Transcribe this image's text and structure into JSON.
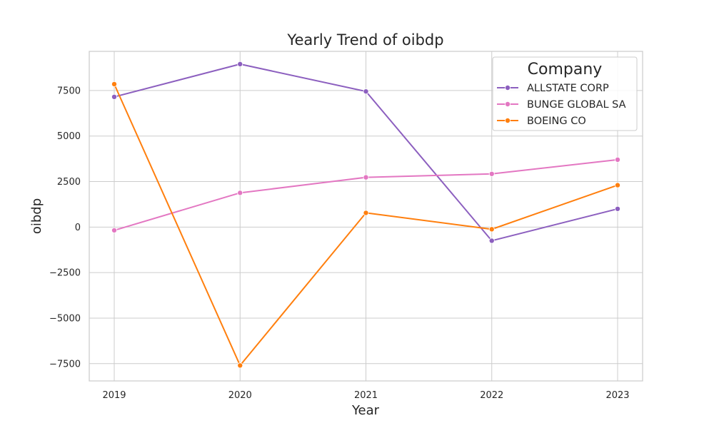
{
  "chart_data": {
    "type": "line",
    "title": "Yearly Trend of oibdp",
    "xlabel": "Year",
    "ylabel": "oibdp",
    "x": [
      "2019",
      "2020",
      "2021",
      "2022",
      "2023"
    ],
    "yticks": [
      -7500,
      -5000,
      -2500,
      0,
      2500,
      5000,
      7500
    ],
    "ytick_labels": [
      "−7500",
      "−5000",
      "−2500",
      "0",
      "2500",
      "5000",
      "7500"
    ],
    "ylim": [
      -8450,
      9650
    ],
    "grid": true,
    "legend": {
      "title": "Company",
      "placement": "top-right"
    },
    "series": [
      {
        "name": "ALLSTATE CORP",
        "color": "#8c5fbf",
        "values": [
          7150,
          8950,
          7450,
          -750,
          1000
        ]
      },
      {
        "name": "BUNGE GLOBAL SA",
        "color": "#e377c2",
        "values": [
          -180,
          1880,
          2730,
          2920,
          3700
        ]
      },
      {
        "name": "BOEING CO",
        "color": "#ff7f0e",
        "values": [
          7850,
          -7600,
          780,
          -120,
          2300
        ]
      }
    ]
  }
}
